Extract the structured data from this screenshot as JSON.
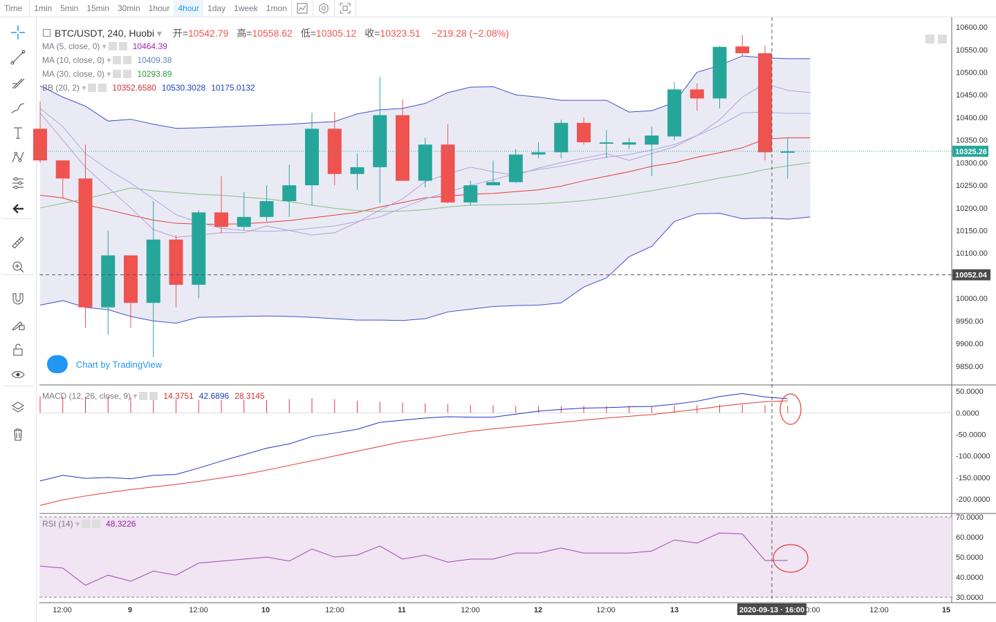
{
  "timeframes": [
    "Time",
    "1min",
    "5min",
    "15min",
    "30min",
    "1hour",
    "4hour",
    "1day",
    "1week",
    "1mon"
  ],
  "active_timeframe": "4hour",
  "tools": [
    "crosshair-icon",
    "trend-line-icon",
    "pitchfork-icon",
    "brush-icon",
    "text-icon",
    "pattern-icon",
    "measure-icon",
    "back-arrow-icon",
    "ruler-icon",
    "zoom-in-icon",
    "magnet-icon",
    "lock-drawing-icon",
    "lock-icon",
    "eye-icon",
    "layers-icon",
    "trash-icon"
  ],
  "symbol": {
    "name": "BTC/USDT, 240, Huobi",
    "open_label": "开=",
    "open": "10542.79",
    "high_label": "高=",
    "high": "10558.62",
    "low_label": "低=",
    "low": "10305.12",
    "close_label": "收=",
    "close": "10323.51",
    "change": "−219.28 (−2.08%)"
  },
  "legends": [
    {
      "name": "MA (5, close, 0)",
      "values": [
        "10464.39"
      ],
      "colors": [
        "#9c27b0"
      ]
    },
    {
      "name": "MA (10, close, 0)",
      "values": [
        "10409.38"
      ],
      "colors": [
        "#5c8ab8"
      ]
    },
    {
      "name": "MA (30, close, 0)",
      "values": [
        "10293.89"
      ],
      "colors": [
        "#2e9a3a"
      ]
    },
    {
      "name": "BB (20, 2)",
      "values": [
        "10352.6580",
        "10530.3028",
        "10175.0132"
      ],
      "colors": [
        "#d32f2f",
        "#1f3fbf",
        "#1f3fbf"
      ]
    }
  ],
  "macd_legend": {
    "name": "MACD (12, 26, close, 9)",
    "values": [
      "14.3751",
      "42.6896",
      "28.3145"
    ],
    "colors": [
      "#d32f2f",
      "#1f3fbf",
      "#d32f2f"
    ]
  },
  "rsi_legend": {
    "name": "RSI (14)",
    "values": [
      "48.3226"
    ],
    "colors": [
      "#8e24aa"
    ]
  },
  "watermark": "Chart by TradingView",
  "crosshair_label": "2020-09-13 · 16:00",
  "last_price_label": "10325.26",
  "crosshair_price_label": "10052.04",
  "colors": {
    "up": "#26a69a",
    "down": "#ef5350",
    "accent": "#2196f3",
    "bb_fill": "#e8e8f4",
    "rsi_fill": "#f1e4f3"
  },
  "chart_data": [
    {
      "type": "candlestick",
      "title": "BTC/USDT, 240, Huobi",
      "x_ticks": [
        "12:00",
        "9",
        "12:00",
        "10",
        "12:00",
        "11",
        "12:00",
        "12",
        "12:00",
        "13",
        "00:00",
        "12:00",
        "15"
      ],
      "y_ticks": [
        9850,
        9900,
        9950,
        10000,
        10050,
        10100,
        10150,
        10200,
        10250,
        10300,
        10350,
        10400,
        10450,
        10500,
        10550,
        10600
      ],
      "ylim": [
        9810,
        10620
      ],
      "candles": [
        [
          10375,
          10435,
          10300,
          10305
        ],
        [
          10305,
          10305,
          10220,
          10265
        ],
        [
          10265,
          10340,
          9935,
          9980
        ],
        [
          9980,
          10150,
          9920,
          10095
        ],
        [
          10095,
          10095,
          9935,
          9990
        ],
        [
          9990,
          10215,
          9870,
          10130
        ],
        [
          10130,
          10140,
          9980,
          10030
        ],
        [
          10030,
          10195,
          10000,
          10190
        ],
        [
          10190,
          10270,
          10145,
          10158
        ],
        [
          10158,
          10235,
          10150,
          10180
        ],
        [
          10180,
          10250,
          10170,
          10215
        ],
        [
          10215,
          10295,
          10180,
          10250
        ],
        [
          10250,
          10410,
          10205,
          10375
        ],
        [
          10375,
          10412,
          10250,
          10275
        ],
        [
          10275,
          10320,
          10240,
          10290
        ],
        [
          10290,
          10490,
          10210,
          10405
        ],
        [
          10405,
          10440,
          10260,
          10260
        ],
        [
          10260,
          10355,
          10245,
          10340
        ],
        [
          10340,
          10385,
          10210,
          10212
        ],
        [
          10212,
          10260,
          10205,
          10250
        ],
        [
          10250,
          10305,
          10250,
          10257
        ],
        [
          10257,
          10330,
          10255,
          10318
        ],
        [
          10318,
          10345,
          10310,
          10323
        ],
        [
          10323,
          10395,
          10310,
          10388
        ],
        [
          10388,
          10400,
          10340,
          10345
        ],
        [
          10342,
          10372,
          10310,
          10345
        ],
        [
          10340,
          10355,
          10330,
          10345
        ],
        [
          10340,
          10380,
          10270,
          10360
        ],
        [
          10358,
          10478,
          10350,
          10462
        ],
        [
          10462,
          10475,
          10415,
          10442
        ],
        [
          10442,
          10558,
          10420,
          10556
        ],
        [
          10557,
          10582,
          10537,
          10542
        ],
        [
          10542,
          10559,
          10305,
          10323
        ],
        [
          10323,
          10355,
          10265,
          10325
        ]
      ],
      "ma5": [
        10410,
        10350,
        10290,
        10245,
        10200,
        10152,
        10135,
        10140,
        10145,
        10145,
        10160,
        10150,
        10140,
        10145,
        10168,
        10195,
        10220,
        10258,
        10275,
        10290,
        10280,
        10272,
        10288,
        10300,
        10310,
        10320,
        10305,
        10320,
        10335,
        10360,
        10395,
        10445,
        10475,
        10460,
        10455
      ],
      "ma10": [
        10420,
        10380,
        10320,
        10285,
        10255,
        10220,
        10185,
        10168,
        10155,
        10150,
        10148,
        10150,
        10155,
        10160,
        10170,
        10180,
        10200,
        10220,
        10235,
        10250,
        10262,
        10276,
        10285,
        10292,
        10303,
        10312,
        10318,
        10328,
        10340,
        10360,
        10382,
        10410,
        10412,
        10409,
        10409
      ],
      "ma30": [
        10200,
        10210,
        10220,
        10232,
        10244,
        10238,
        10234,
        10230,
        10228,
        10224,
        10220,
        10214,
        10206,
        10199,
        10194,
        10192,
        10193,
        10196,
        10202,
        10206,
        10207,
        10208,
        10209,
        10212,
        10216,
        10222,
        10230,
        10238,
        10247,
        10256,
        10266,
        10274,
        10285,
        10293,
        10300
      ],
      "bb_basis": [
        10228,
        10222,
        10207,
        10196,
        10184,
        10173,
        10166,
        10164,
        10164,
        10165,
        10168,
        10172,
        10178,
        10184,
        10190,
        10202,
        10212,
        10222,
        10226,
        10230,
        10232,
        10236,
        10240,
        10248,
        10260,
        10270,
        10280,
        10292,
        10300,
        10312,
        10322,
        10333,
        10352,
        10355,
        10355
      ],
      "bb_upper": [
        10470,
        10445,
        10425,
        10392,
        10396,
        10385,
        10376,
        10377,
        10379,
        10381,
        10383,
        10385,
        10388,
        10391,
        10408,
        10417,
        10420,
        10431,
        10455,
        10467,
        10468,
        10450,
        10445,
        10438,
        10438,
        10438,
        10412,
        10415,
        10433,
        10500,
        10515,
        10536,
        10532,
        10530,
        10530
      ],
      "bb_lower": [
        9985,
        9995,
        9980,
        9975,
        9960,
        9950,
        9945,
        9958,
        9959,
        9960,
        9961,
        9960,
        9958,
        9955,
        9952,
        9952,
        9951,
        9955,
        9970,
        9976,
        9982,
        9984,
        9985,
        9990,
        10025,
        10045,
        10092,
        10115,
        10170,
        10187,
        10188,
        10176,
        10178,
        10175,
        10180
      ]
    },
    {
      "type": "line",
      "title": "MACD (12, 26, close, 9)",
      "y_ticks": [
        -200,
        -150,
        -100,
        -50,
        0,
        50
      ],
      "ylim": [
        -232,
        60
      ],
      "histogram": [
        38,
        38,
        38,
        38,
        36,
        34,
        32,
        30,
        30,
        30,
        30,
        32,
        34,
        32,
        28,
        26,
        24,
        22,
        20,
        18,
        17,
        16,
        16,
        16,
        16,
        16,
        16,
        16,
        17,
        18,
        19,
        19,
        18,
        17
      ],
      "macd": [
        -158,
        -145,
        -152,
        -150,
        -153,
        -145,
        -143,
        -128,
        -112,
        -97,
        -82,
        -72,
        -55,
        -47,
        -38,
        -22,
        -17,
        -12,
        -9,
        -10,
        -10,
        -3,
        4,
        8,
        11,
        12,
        14,
        15,
        20,
        27,
        38,
        45,
        37,
        33
      ],
      "signal": [
        -215,
        -202,
        -193,
        -185,
        -178,
        -172,
        -166,
        -159,
        -151,
        -143,
        -133,
        -122,
        -111,
        -100,
        -89,
        -78,
        -67,
        -60,
        -51,
        -43,
        -37,
        -32,
        -27,
        -22,
        -17,
        -12,
        -8,
        -4,
        2,
        8,
        15,
        21,
        26,
        28
      ]
    },
    {
      "type": "line",
      "title": "RSI (14)",
      "y_ticks": [
        30,
        40,
        50,
        60,
        70
      ],
      "ylim": [
        28,
        71
      ],
      "values": [
        45.5,
        44.5,
        36,
        41,
        38,
        43,
        41,
        47,
        48,
        49,
        50,
        48,
        54,
        50,
        51,
        55.5,
        49,
        51,
        47.5,
        49,
        49,
        52,
        52,
        54.5,
        52,
        52,
        52,
        53,
        58.5,
        57,
        62,
        61.5,
        48.3,
        48.3
      ]
    }
  ]
}
